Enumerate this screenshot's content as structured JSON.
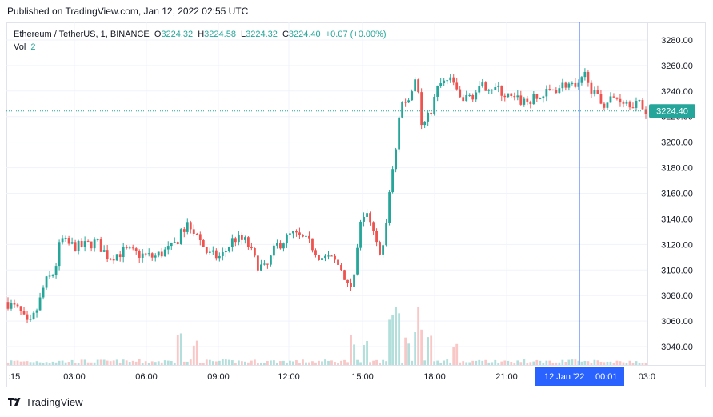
{
  "header": {
    "published": "Published on TradingView.com, Jan 12, 2022 02:55 UTC"
  },
  "legend": {
    "symbol": "Ethereum / TetherUS, 1, BINANCE",
    "open_label": "O",
    "open": "3224.32",
    "high_label": "H",
    "high": "3224.58",
    "low_label": "L",
    "low": "3224.32",
    "close_label": "C",
    "close": "3224.40",
    "change": "+0.07 (+0.00%)",
    "volume_label": "Vol",
    "volume": "2"
  },
  "price_axis": {
    "ticks": [
      "3280.00",
      "3260.00",
      "3240.00",
      "3220.00",
      "3200.00",
      "3180.00",
      "3160.00",
      "3140.00",
      "3120.00",
      "3100.00",
      "3080.00",
      "3060.00",
      "3040.00"
    ],
    "current_price_label": "3224.40"
  },
  "time_axis": {
    "ticks": [
      ":15",
      "03:00",
      "06:00",
      "09:00",
      "12:00",
      "15:00",
      "18:00",
      "21:00",
      "03:0"
    ],
    "crosshair_date": "12 Jan '22",
    "crosshair_time": "00:01"
  },
  "footer": {
    "brand": "TradingView"
  },
  "colors": {
    "up": "#26a69a",
    "down": "#ef5350",
    "crosshair": "#2962ff",
    "price_label_bg": "#26a69a",
    "volume_up": "#b2dfdb",
    "volume_down": "#f8c7c6"
  },
  "chart_data": {
    "type": "candlestick",
    "symbol": "Ethereum / TetherUS",
    "interval": "1",
    "exchange": "BINANCE",
    "ylim": [
      3030,
      3290
    ],
    "y_ticks": [
      3040,
      3060,
      3080,
      3100,
      3120,
      3140,
      3160,
      3180,
      3200,
      3220,
      3240,
      3260,
      3280
    ],
    "x_ticks": [
      ":15",
      "03:00",
      "06:00",
      "09:00",
      "12:00",
      "15:00",
      "18:00",
      "21:00",
      "03:0"
    ],
    "last_price": 3224.4,
    "path": [
      [
        0.0,
        3075
      ],
      [
        0.02,
        3068
      ],
      [
        0.035,
        3055
      ],
      [
        0.05,
        3072
      ],
      [
        0.06,
        3090
      ],
      [
        0.075,
        3098
      ],
      [
        0.085,
        3125
      ],
      [
        0.095,
        3120
      ],
      [
        0.115,
        3118
      ],
      [
        0.14,
        3122
      ],
      [
        0.16,
        3110
      ],
      [
        0.185,
        3115
      ],
      [
        0.21,
        3112
      ],
      [
        0.23,
        3110
      ],
      [
        0.26,
        3118
      ],
      [
        0.285,
        3138
      ],
      [
        0.3,
        3125
      ],
      [
        0.315,
        3112
      ],
      [
        0.335,
        3110
      ],
      [
        0.355,
        3125
      ],
      [
        0.375,
        3122
      ],
      [
        0.39,
        3105
      ],
      [
        0.405,
        3100
      ],
      [
        0.42,
        3118
      ],
      [
        0.445,
        3128
      ],
      [
        0.46,
        3125
      ],
      [
        0.475,
        3120
      ],
      [
        0.49,
        3110
      ],
      [
        0.51,
        3108
      ],
      [
        0.525,
        3100
      ],
      [
        0.535,
        3082
      ],
      [
        0.545,
        3105
      ],
      [
        0.555,
        3145
      ],
      [
        0.565,
        3140
      ],
      [
        0.58,
        3115
      ],
      [
        0.59,
        3120
      ],
      [
        0.6,
        3175
      ],
      [
        0.605,
        3185
      ],
      [
        0.615,
        3230
      ],
      [
        0.63,
        3235
      ],
      [
        0.64,
        3255
      ],
      [
        0.648,
        3210
      ],
      [
        0.66,
        3222
      ],
      [
        0.675,
        3245
      ],
      [
        0.695,
        3248
      ],
      [
        0.71,
        3232
      ],
      [
        0.73,
        3238
      ],
      [
        0.75,
        3245
      ],
      [
        0.77,
        3240
      ],
      [
        0.79,
        3233
      ],
      [
        0.81,
        3232
      ],
      [
        0.83,
        3234
      ],
      [
        0.855,
        3242
      ],
      [
        0.875,
        3246
      ],
      [
        0.89,
        3240
      ],
      [
        0.905,
        3255
      ],
      [
        0.915,
        3238
      ],
      [
        0.93,
        3230
      ],
      [
        0.95,
        3235
      ],
      [
        0.97,
        3232
      ],
      [
        0.985,
        3230
      ],
      [
        1.0,
        3224
      ]
    ],
    "volume_spikes": [
      [
        0.27,
        0.6
      ],
      [
        0.295,
        0.45
      ],
      [
        0.54,
        0.5
      ],
      [
        0.56,
        0.35
      ],
      [
        0.6,
        0.9
      ],
      [
        0.61,
        1.0
      ],
      [
        0.625,
        0.55
      ],
      [
        0.64,
        0.7
      ],
      [
        0.645,
        0.6
      ],
      [
        0.66,
        0.45
      ],
      [
        0.7,
        0.3
      ]
    ]
  }
}
